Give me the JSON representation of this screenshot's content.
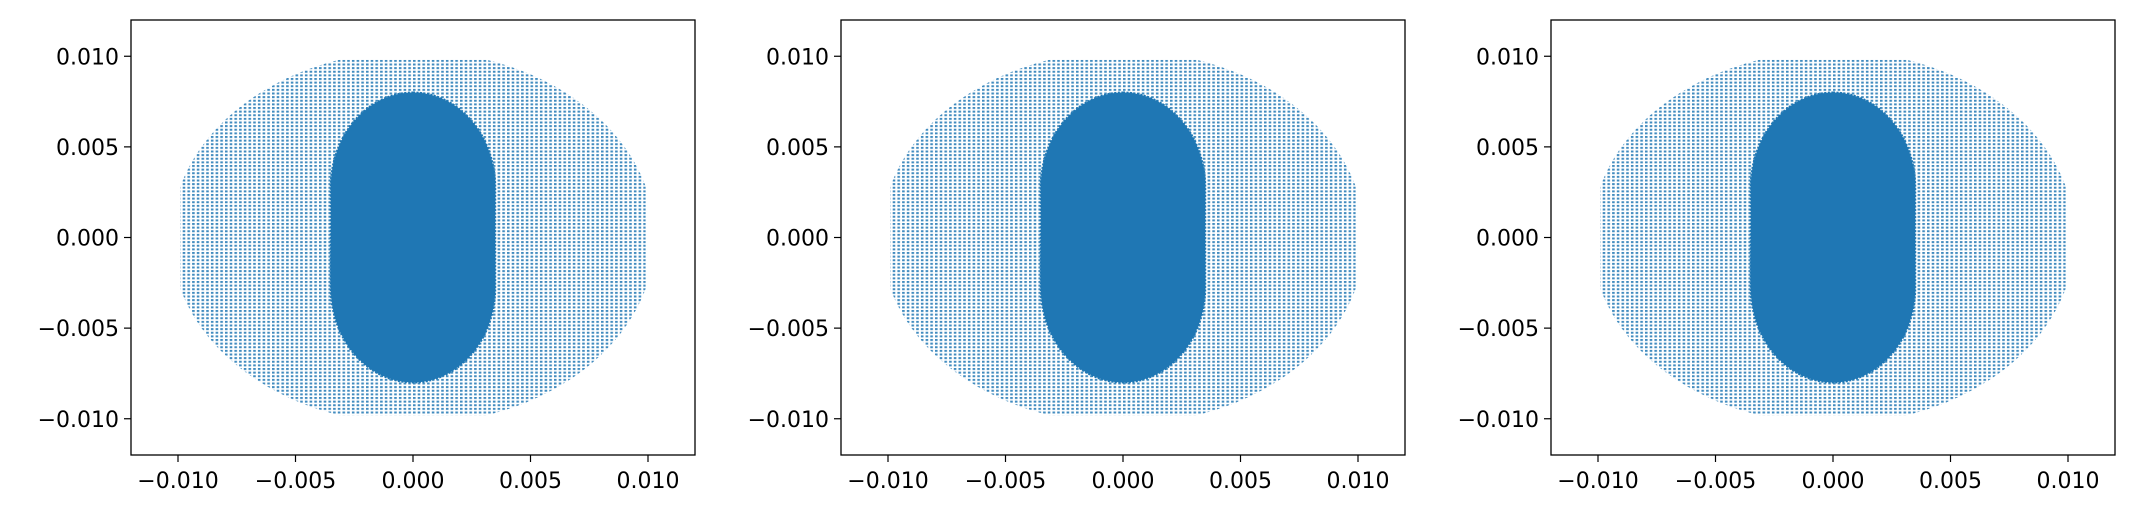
{
  "chart_data": [
    {
      "type": "scatter",
      "title": "",
      "xlabel": "",
      "ylabel": "",
      "xlim": [
        -0.012,
        0.012
      ],
      "ylim": [
        -0.012,
        0.012
      ],
      "grid": false,
      "color": "#1f77b4",
      "x_ticks": [
        -0.01,
        -0.005,
        0.0,
        0.005,
        0.01
      ],
      "x_tick_labels": [
        "−0.010",
        "−0.005",
        "0.000",
        "0.005",
        "0.010"
      ],
      "y_ticks": [
        -0.01,
        -0.005,
        0.0,
        0.005,
        0.01
      ],
      "y_tick_labels": [
        "−0.010",
        "−0.005",
        "0.000",
        "0.005",
        "0.010"
      ],
      "series": [
        {
          "shape": "ellipse-grid",
          "center": [
            0.0,
            0.0
          ],
          "rx": 0.0099,
          "ry": 0.0099,
          "x_flat_extent": [
            -0.0099,
            0.0099
          ],
          "y_extent": [
            -0.0098,
            0.0098
          ],
          "x_step": 0.0002,
          "y_step": 0.0002
        },
        {
          "shape": "stadium-dense",
          "center": [
            0.0,
            0.0
          ],
          "half_width": 0.0035,
          "half_height": 0.008
        }
      ]
    },
    {
      "type": "scatter",
      "title": "",
      "xlabel": "",
      "ylabel": "",
      "xlim": [
        -0.012,
        0.012
      ],
      "ylim": [
        -0.012,
        0.012
      ],
      "grid": false,
      "color": "#1f77b4",
      "x_ticks": [
        -0.01,
        -0.005,
        0.0,
        0.005,
        0.01
      ],
      "x_tick_labels": [
        "−0.010",
        "−0.005",
        "0.000",
        "0.005",
        "0.010"
      ],
      "y_ticks": [
        -0.01,
        -0.005,
        0.0,
        0.005,
        0.01
      ],
      "y_tick_labels": [
        "−0.010",
        "−0.005",
        "0.000",
        "0.005",
        "0.010"
      ],
      "series": [
        {
          "shape": "ellipse-grid",
          "center": [
            0.0,
            0.0
          ],
          "rx": 0.0099,
          "ry": 0.0099,
          "x_flat_extent": [
            -0.0099,
            0.0099
          ],
          "y_extent": [
            -0.0098,
            0.0098
          ],
          "x_step": 0.0002,
          "y_step": 0.0002
        },
        {
          "shape": "stadium-dense",
          "center": [
            0.0,
            0.0
          ],
          "half_width": 0.0035,
          "half_height": 0.008
        }
      ]
    },
    {
      "type": "scatter",
      "title": "",
      "xlabel": "",
      "ylabel": "",
      "xlim": [
        -0.012,
        0.012
      ],
      "ylim": [
        -0.012,
        0.012
      ],
      "grid": false,
      "color": "#1f77b4",
      "x_ticks": [
        -0.01,
        -0.005,
        0.0,
        0.005,
        0.01
      ],
      "x_tick_labels": [
        "−0.010",
        "−0.005",
        "0.000",
        "0.005",
        "0.010"
      ],
      "y_ticks": [
        -0.01,
        -0.005,
        0.0,
        0.005,
        0.01
      ],
      "y_tick_labels": [
        "−0.010",
        "−0.005",
        "0.000",
        "0.005",
        "0.010"
      ],
      "series": [
        {
          "shape": "ellipse-grid",
          "center": [
            0.0,
            0.0
          ],
          "rx": 0.0099,
          "ry": 0.0099,
          "x_flat_extent": [
            -0.0099,
            0.0099
          ],
          "y_extent": [
            -0.0098,
            0.0098
          ],
          "x_step": 0.0002,
          "y_step": 0.0002
        },
        {
          "shape": "stadium-dense",
          "center": [
            0.0,
            0.0
          ],
          "half_width": 0.0035,
          "half_height": 0.008
        }
      ]
    }
  ]
}
